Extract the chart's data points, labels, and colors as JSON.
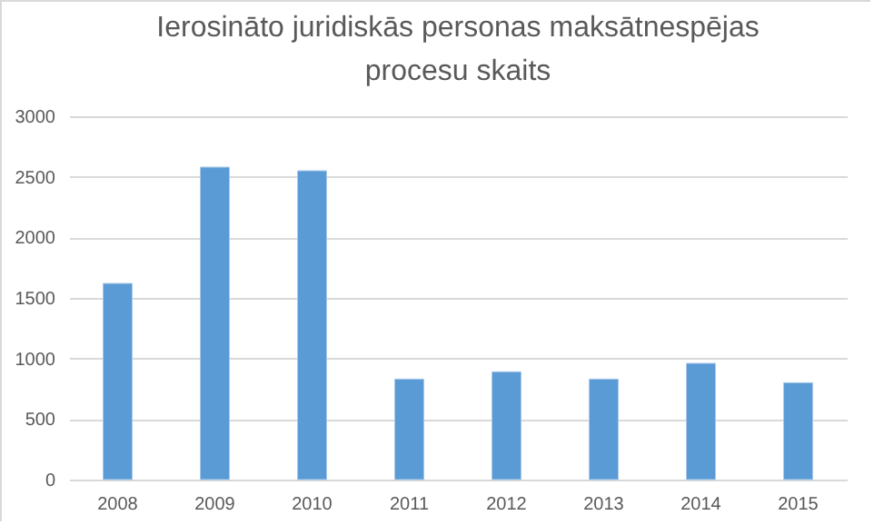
{
  "chart_data": {
    "type": "bar",
    "title": "Ierosināto juridiskās personas maksātnespējas procesu skaits",
    "categories": [
      "2008",
      "2009",
      "2010",
      "2011",
      "2012",
      "2013",
      "2014",
      "2015"
    ],
    "values": [
      1620,
      2580,
      2550,
      830,
      890,
      830,
      960,
      800
    ],
    "color": "#5b9bd5",
    "ylim": [
      0,
      3000
    ],
    "yticks": [
      0,
      500,
      1000,
      1500,
      2000,
      2500,
      3000
    ],
    "grid": "y"
  }
}
